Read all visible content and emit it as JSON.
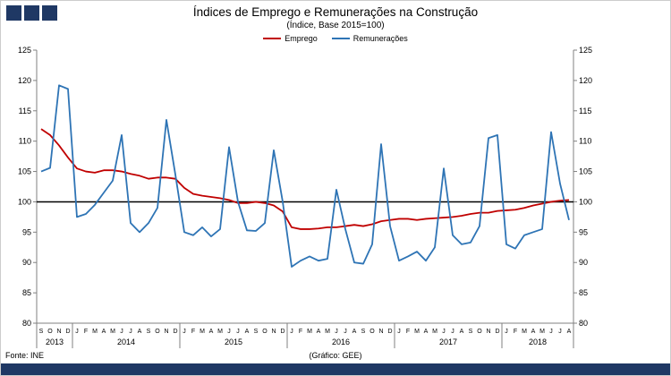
{
  "header": {
    "title": "Índices de Emprego e Remunerações na Construção",
    "subtitle": "(Índice, Base 2015=100)"
  },
  "legend": {
    "emprego": "Emprego",
    "remuneracoes": "Remunerações"
  },
  "footer": {
    "source": "Fonte: INE",
    "credit": "(Gráfico: GEE)"
  },
  "colors": {
    "navy": "#1F3864",
    "axis": "#808080",
    "baseline": "#000000"
  },
  "chart_data": {
    "type": "line",
    "title": "Índices de Emprego e Remunerações na Construção",
    "subtitle": "(Índice, Base 2015=100)",
    "ylabel": "",
    "xlabel": "",
    "ylim": [
      80,
      125
    ],
    "y_ticks": [
      80,
      85,
      90,
      95,
      100,
      105,
      110,
      115,
      120,
      125
    ],
    "baseline": 100,
    "legend_position": "top",
    "grid": false,
    "month_labels": [
      "S",
      "O",
      "N",
      "D",
      "J",
      "F",
      "M",
      "A",
      "M",
      "J",
      "J",
      "A",
      "S",
      "O",
      "N",
      "D",
      "J",
      "F",
      "M",
      "A",
      "M",
      "J",
      "J",
      "A",
      "S",
      "O",
      "N",
      "D",
      "J",
      "F",
      "M",
      "A",
      "M",
      "J",
      "J",
      "A",
      "S",
      "O",
      "N",
      "D",
      "J",
      "F",
      "M",
      "A",
      "M",
      "J",
      "J",
      "A",
      "S",
      "O",
      "N",
      "D",
      "J",
      "F",
      "M",
      "A",
      "M",
      "J",
      "J",
      "A"
    ],
    "years": [
      {
        "label": "2013",
        "count": 4
      },
      {
        "label": "2014",
        "count": 12
      },
      {
        "label": "2015",
        "count": 12
      },
      {
        "label": "2016",
        "count": 12
      },
      {
        "label": "2017",
        "count": 12
      },
      {
        "label": "2018",
        "count": 8
      }
    ],
    "series": [
      {
        "name": "Emprego",
        "key": "emprego",
        "color": "#C00000",
        "values": [
          112.0,
          111.0,
          109.3,
          107.3,
          105.5,
          105.0,
          104.8,
          105.2,
          105.2,
          105.0,
          104.6,
          104.3,
          103.8,
          104.0,
          104.0,
          103.8,
          102.3,
          101.3,
          101.0,
          100.8,
          100.6,
          100.3,
          99.8,
          99.8,
          100.0,
          99.8,
          99.4,
          98.4,
          95.8,
          95.5,
          95.5,
          95.6,
          95.8,
          95.8,
          96.0,
          96.2,
          96.0,
          96.3,
          96.8,
          97.0,
          97.2,
          97.2,
          97.0,
          97.2,
          97.3,
          97.4,
          97.5,
          97.7,
          98.0,
          98.2,
          98.2,
          98.5,
          98.6,
          98.7,
          99.0,
          99.4,
          99.7,
          100.0,
          100.2,
          100.3
        ]
      },
      {
        "name": "Remunerações",
        "key": "remuneracoes",
        "color": "#2E74B5",
        "values": [
          105.0,
          105.6,
          119.2,
          118.6,
          97.5,
          98.0,
          99.5,
          101.5,
          103.5,
          111.0,
          96.5,
          95.0,
          96.5,
          99.0,
          113.5,
          104.5,
          95.0,
          94.5,
          95.8,
          94.3,
          95.5,
          109.0,
          100.0,
          95.3,
          95.2,
          96.5,
          108.5,
          100.0,
          89.3,
          90.3,
          91.0,
          90.3,
          90.6,
          102.0,
          95.5,
          90.0,
          89.8,
          93.0,
          109.5,
          96.0,
          90.3,
          91.0,
          91.8,
          90.3,
          92.5,
          105.5,
          94.5,
          93.0,
          93.3,
          96.0,
          110.5,
          111.0,
          93.0,
          92.3,
          94.5,
          95.0,
          95.5,
          111.5,
          103.0,
          97.0
        ]
      }
    ]
  }
}
